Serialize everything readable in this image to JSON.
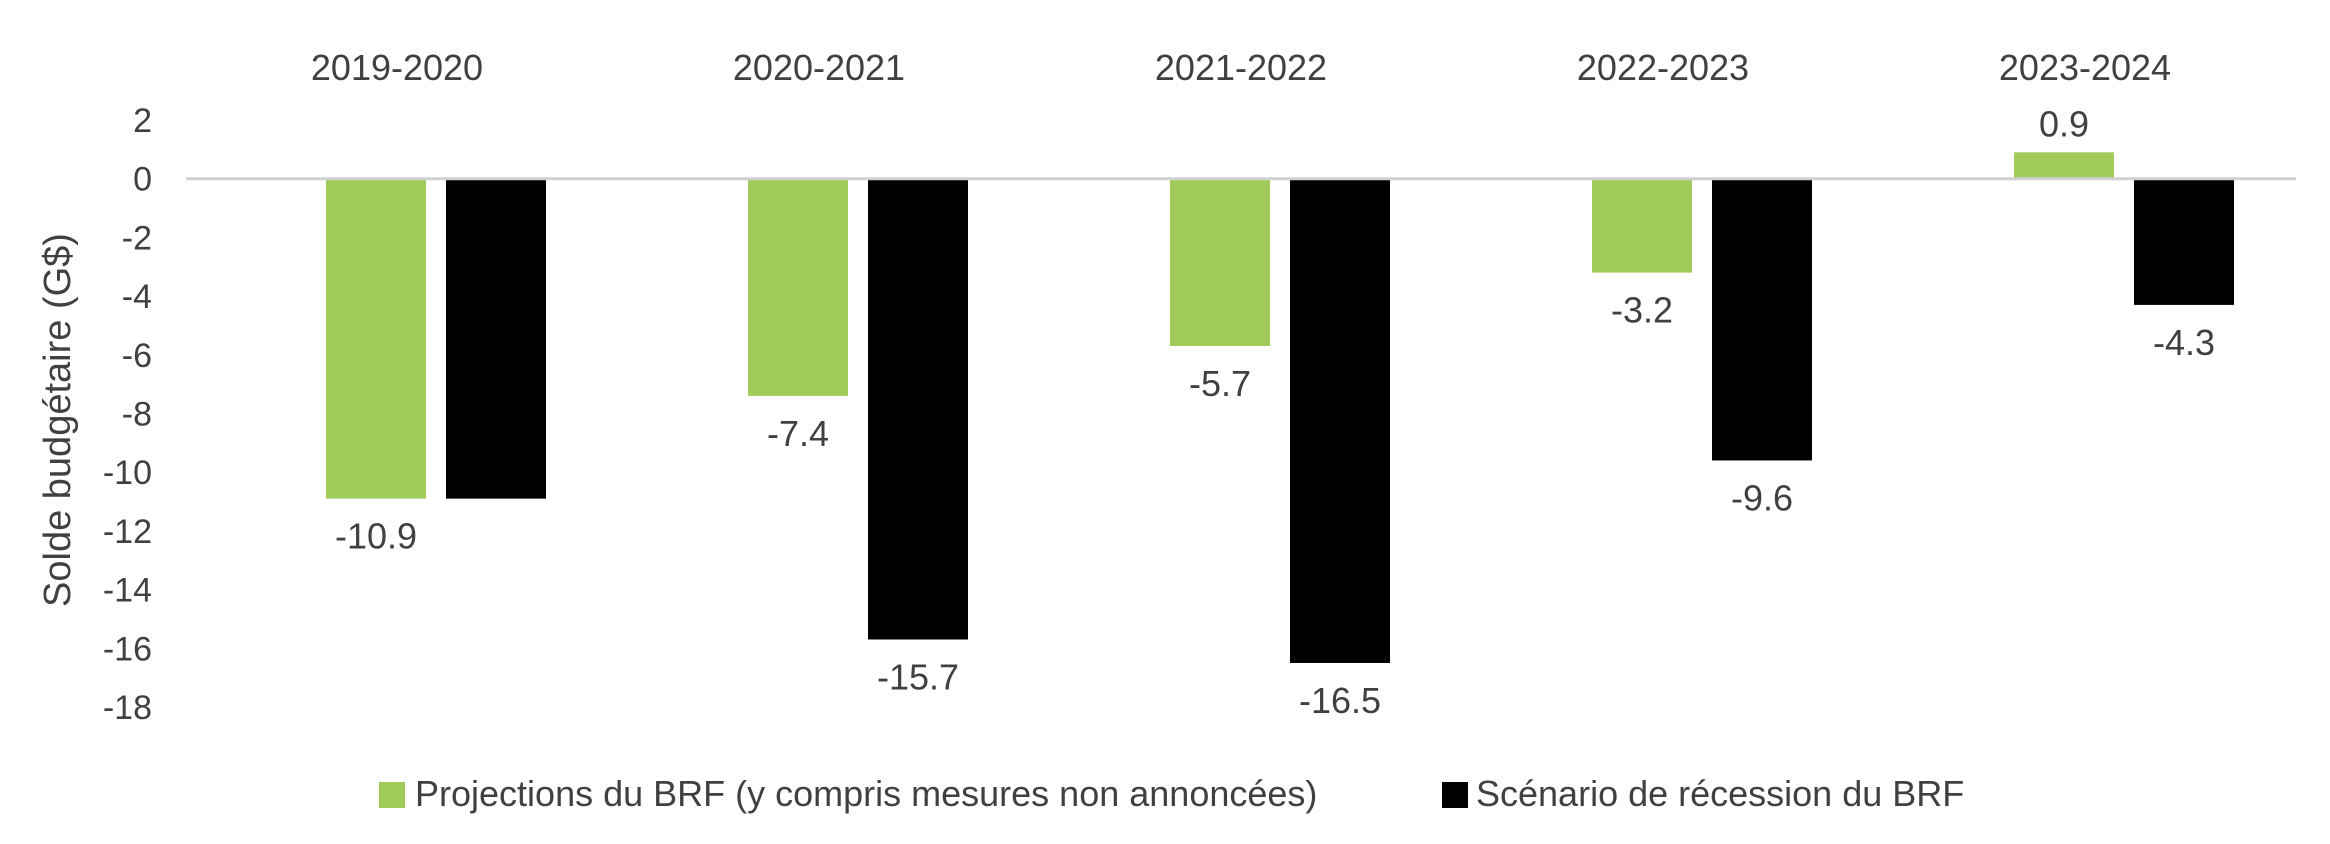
{
  "chart_data": {
    "type": "bar",
    "categories": [
      "2019-2020",
      "2020-2021",
      "2021-2022",
      "2022-2023",
      "2023-2024"
    ],
    "series": [
      {
        "name": "Projections du BRF (y compris mesures non annoncées)",
        "color": "#a1cc5b",
        "values": [
          -10.9,
          -7.4,
          -5.7,
          -3.2,
          0.9
        ],
        "labels": [
          "-10.9",
          "-7.4",
          "-5.7",
          "-3.2",
          "0.9"
        ]
      },
      {
        "name": "Scénario de récession du BRF",
        "color": "#000000",
        "values": [
          -10.9,
          -15.7,
          -16.5,
          -9.6,
          -4.3
        ],
        "labels": [
          "",
          "-15.7",
          "-16.5",
          "-9.6",
          "-4.3"
        ]
      }
    ],
    "ylabel": "Solde budgétaire (G$)",
    "ylim": [
      -18,
      2
    ],
    "yticks": [
      2,
      0,
      -2,
      -4,
      -6,
      -8,
      -10,
      -12,
      -14,
      -16,
      -18
    ],
    "category_axis_position": "top",
    "grid": false,
    "legend_position": "bottom"
  }
}
